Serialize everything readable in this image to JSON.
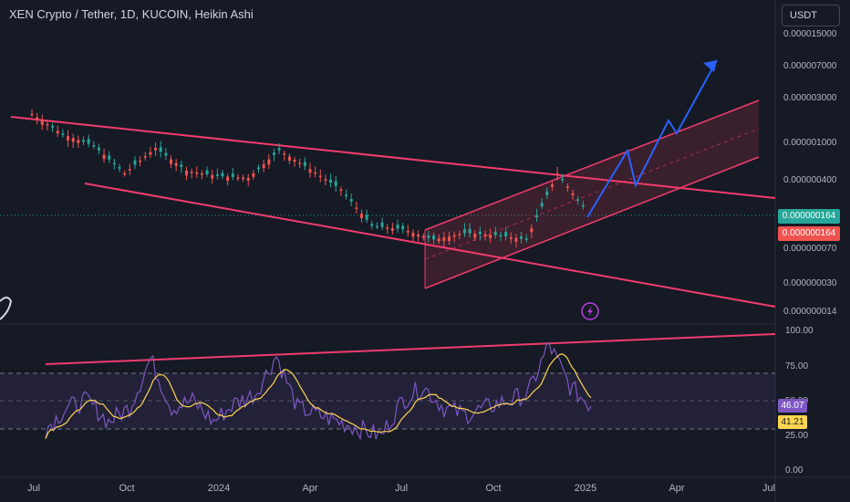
{
  "header": {
    "title": "XEN Crypto / Tether, 1D, KUCOIN, Heikin Ashi",
    "currency": "USDT"
  },
  "price_axis": {
    "labels": [
      "0.000015000",
      "0.000007000",
      "0.000003000",
      "0.000001000",
      "0.000000400",
      "0.000000070",
      "0.000000030",
      "0.000000014"
    ],
    "last_price": "0.000000164",
    "last_price_2": "0.000000164"
  },
  "rsi_axis": {
    "labels": [
      "100.00",
      "75.00",
      "50.00",
      "25.00",
      "0.00"
    ],
    "rsi_value": "46.07",
    "ma_value": "41.21"
  },
  "time_axis": {
    "labels": [
      "Jul",
      "Oct",
      "2024",
      "Apr",
      "Jul",
      "Oct",
      "2025",
      "Apr",
      "Jul"
    ]
  },
  "colors": {
    "background": "#161a25",
    "trendline": "#f23c6e",
    "channel": "#e03a4b",
    "projection": "#2962ff",
    "rsi": "#7e57c2",
    "rsi_ma": "#ffd54f",
    "up": "#26a69a",
    "down": "#ef5350"
  },
  "icons": {
    "flash": "lightning-icon",
    "logo": "tradingview-mascot-icon"
  },
  "chart_data": {
    "type": "line",
    "title": "XEN Crypto / Tether, 1D, KUCOIN, Heikin Ashi",
    "y_scale": "log",
    "x": [
      "2023-07",
      "2023-08",
      "2023-09",
      "2023-10",
      "2023-11",
      "2023-12",
      "2024-01",
      "2024-02",
      "2024-03",
      "2024-04",
      "2024-05",
      "2024-06",
      "2024-07",
      "2024-08",
      "2024-09",
      "2024-10",
      "2024-11",
      "2024-12",
      "2025-01"
    ],
    "series": [
      {
        "values": [
          2e-06,
          1.2e-06,
          9e-07,
          4.5e-07,
          8.5e-07,
          4.8e-07,
          4.2e-07,
          4e-07,
          8e-07,
          5e-07,
          3e-07,
          1.2e-07,
          1.1e-07,
          8.5e-08,
          1e-07,
          9.5e-08,
          8.5e-08,
          4.5e-07,
          1.64e-07
        ]
      }
    ],
    "rsi": {
      "ylim": [
        0,
        100
      ],
      "levels": [
        70,
        50,
        30
      ],
      "values": [
        30,
        45,
        50,
        35,
        45,
        80,
        45,
        50,
        35,
        48,
        55,
        82,
        45,
        40,
        35,
        30,
        25,
        50,
        60,
        45,
        40,
        45,
        50,
        55,
        90,
        60,
        46
      ]
    }
  }
}
